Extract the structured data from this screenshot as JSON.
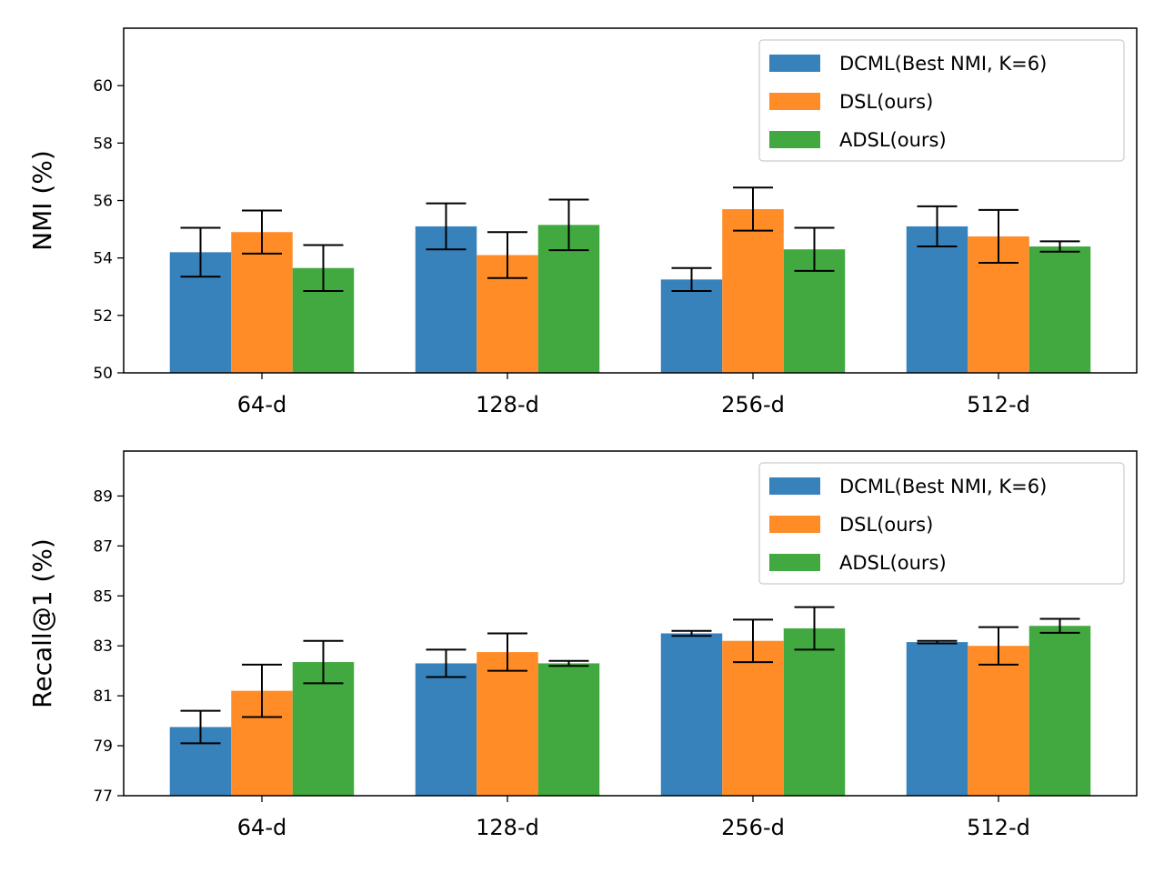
{
  "chart_data": [
    {
      "type": "bar",
      "title": "",
      "xlabel": "",
      "ylabel": "NMI (%)",
      "ylim": [
        50,
        62
      ],
      "yticks": [
        50,
        52,
        54,
        56,
        58,
        60
      ],
      "categories": [
        "64-d",
        "128-d",
        "256-d",
        "512-d"
      ],
      "legend": {
        "position": "top-right"
      },
      "series": [
        {
          "name": "DCML(Best NMI, K=6)",
          "color": "#3882bc",
          "values": [
            54.2,
            55.1,
            53.25,
            55.1
          ],
          "errors": [
            0.85,
            0.8,
            0.4,
            0.7
          ]
        },
        {
          "name": "DSL(ours)",
          "color": "#ff8c27",
          "values": [
            54.9,
            54.1,
            55.7,
            54.75
          ],
          "errors": [
            0.75,
            0.8,
            0.75,
            0.92
          ]
        },
        {
          "name": "ADSL(ours)",
          "color": "#41a940",
          "values": [
            53.65,
            55.15,
            54.3,
            54.4
          ],
          "errors": [
            0.8,
            0.88,
            0.75,
            0.18
          ]
        }
      ]
    },
    {
      "type": "bar",
      "title": "",
      "xlabel": "",
      "ylabel": "Recall@1 (%)",
      "ylim": [
        77,
        90.8
      ],
      "yticks": [
        77,
        79,
        81,
        83,
        85,
        87,
        89
      ],
      "categories": [
        "64-d",
        "128-d",
        "256-d",
        "512-d"
      ],
      "legend": {
        "position": "top-right"
      },
      "series": [
        {
          "name": "DCML(Best NMI, K=6)",
          "color": "#3882bc",
          "values": [
            79.75,
            82.3,
            83.5,
            83.15
          ],
          "errors": [
            0.65,
            0.55,
            0.1,
            0.05
          ]
        },
        {
          "name": "DSL(ours)",
          "color": "#ff8c27",
          "values": [
            81.2,
            82.75,
            83.2,
            83.0
          ],
          "errors": [
            1.05,
            0.75,
            0.85,
            0.75
          ]
        },
        {
          "name": "ADSL(ours)",
          "color": "#41a940",
          "values": [
            82.35,
            82.3,
            83.7,
            83.8
          ],
          "errors": [
            0.85,
            0.1,
            0.85,
            0.28
          ]
        }
      ]
    }
  ]
}
